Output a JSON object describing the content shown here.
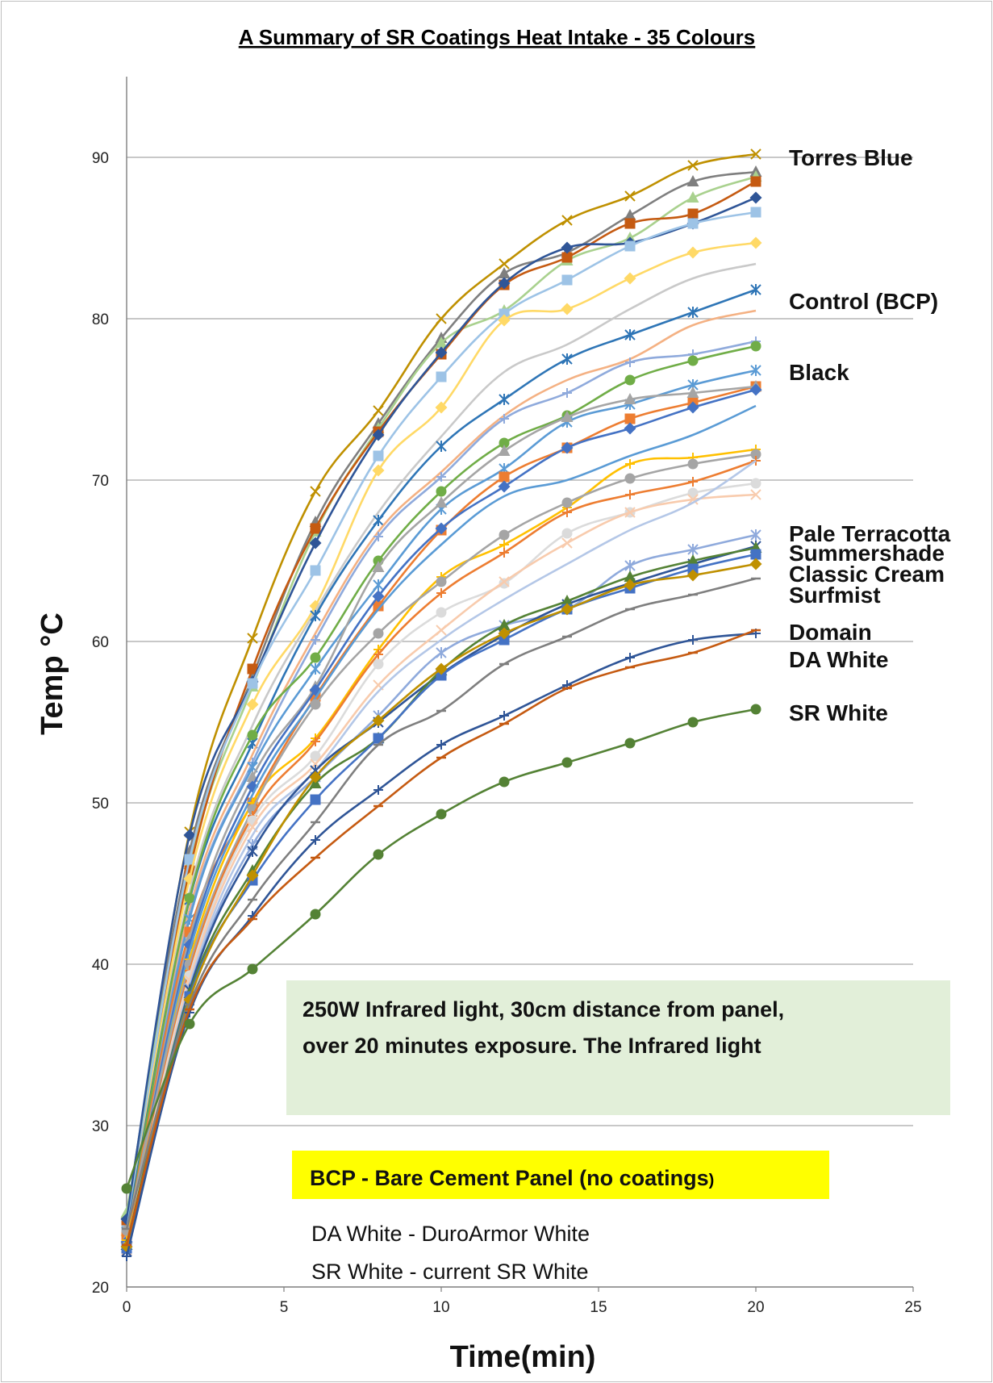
{
  "chart_data": {
    "type": "line",
    "title": "A Summary of SR Coatings Heat Intake - 35 Colours",
    "xlabel": "Time(min)",
    "ylabel": "Temp °C",
    "xlim": [
      0,
      25
    ],
    "ylim": [
      20,
      95
    ],
    "x_ticks": [
      0,
      5,
      10,
      15,
      20,
      25
    ],
    "y_ticks": [
      20,
      30,
      40,
      50,
      60,
      70,
      80,
      90
    ],
    "grid": "horizontal",
    "x": [
      0,
      2,
      4,
      6,
      8,
      10,
      12,
      14,
      16,
      18,
      20
    ],
    "series_labels": [
      {
        "text": "Torres Blue",
        "y": 90.0
      },
      {
        "text": "Control (BCP)",
        "y": 81.1
      },
      {
        "text": "Black",
        "y": 76.7
      },
      {
        "text": "Pale Terracotta",
        "y": 66.7
      },
      {
        "text": "Summershade",
        "y": 65.5
      },
      {
        "text": "Classic Cream",
        "y": 64.2
      },
      {
        "text": "Surfmist",
        "y": 62.9
      },
      {
        "text": "Domain",
        "y": 60.6
      },
      {
        "text": "DA White",
        "y": 58.9
      },
      {
        "text": "SR White",
        "y": 55.6
      }
    ],
    "series": [
      {
        "color": "#bf9000",
        "marker": "x",
        "values": [
          24.0,
          48.2,
          60.2,
          69.3,
          74.3,
          80.0,
          83.4,
          86.1,
          87.6,
          89.5,
          90.2
        ]
      },
      {
        "color": "#7f7f7f",
        "marker": "triangle",
        "values": [
          24.5,
          47.0,
          57.8,
          67.4,
          73.5,
          78.8,
          82.8,
          84.1,
          86.4,
          88.5,
          89.1
        ]
      },
      {
        "color": "#a9d18e",
        "marker": "triangle",
        "values": [
          24.6,
          46.2,
          57.2,
          66.8,
          73.2,
          78.5,
          80.5,
          83.6,
          85.0,
          87.5,
          88.8
        ]
      },
      {
        "color": "#c55a11",
        "marker": "square",
        "values": [
          23.8,
          45.8,
          58.3,
          67.0,
          73.0,
          77.8,
          82.1,
          83.8,
          85.9,
          86.5,
          88.5
        ]
      },
      {
        "color": "#2f5597",
        "marker": "diamond",
        "values": [
          24.2,
          48.0,
          57.5,
          66.1,
          72.8,
          77.9,
          82.2,
          84.4,
          84.7,
          85.9,
          87.5
        ]
      },
      {
        "color": "#9dc3e6",
        "marker": "square",
        "values": [
          23.5,
          46.5,
          57.4,
          64.4,
          71.5,
          76.4,
          80.3,
          82.4,
          84.5,
          85.9,
          86.6
        ]
      },
      {
        "color": "#ffd966",
        "marker": "diamond",
        "values": [
          23.2,
          45.3,
          56.1,
          62.2,
          70.6,
          74.5,
          79.9,
          80.6,
          82.5,
          84.1,
          84.7
        ]
      },
      {
        "color": "#c9c9c9",
        "marker": "none",
        "values": [
          23.0,
          44.5,
          54.8,
          61.9,
          68.0,
          72.7,
          76.7,
          78.4,
          80.6,
          82.5,
          83.4
        ]
      },
      {
        "color": "#2e75b6",
        "marker": "star",
        "values": [
          23.4,
          44.0,
          53.7,
          61.6,
          67.5,
          72.1,
          75.0,
          77.5,
          79.0,
          80.4,
          81.8
        ]
      },
      {
        "color": "#f4b183",
        "marker": "none",
        "values": [
          23.0,
          43.4,
          53.0,
          60.5,
          66.8,
          70.5,
          74.0,
          76.2,
          77.5,
          79.6,
          80.5
        ]
      },
      {
        "color": "#8faadc",
        "marker": "plus",
        "values": [
          22.8,
          43.0,
          52.5,
          60.1,
          66.5,
          70.2,
          73.8,
          75.4,
          77.3,
          77.8,
          78.6
        ]
      },
      {
        "color": "#70ad47",
        "marker": "circle",
        "values": [
          23.0,
          44.1,
          54.2,
          59.0,
          65.0,
          69.3,
          72.3,
          74.0,
          76.2,
          77.4,
          78.3
        ]
      },
      {
        "color": "#5b9bd5",
        "marker": "star",
        "values": [
          22.5,
          42.8,
          52.2,
          58.3,
          63.5,
          68.2,
          70.7,
          73.6,
          74.7,
          75.9,
          76.8
        ]
      },
      {
        "color": "#ed7d31",
        "marker": "square",
        "values": [
          23.2,
          42.0,
          50.0,
          56.6,
          62.2,
          66.9,
          70.2,
          72.0,
          73.8,
          74.8,
          75.8
        ]
      },
      {
        "color": "#a5a5a5",
        "marker": "triangle",
        "values": [
          23.0,
          41.6,
          51.6,
          57.2,
          64.6,
          68.6,
          71.8,
          73.9,
          75.0,
          75.4,
          75.8
        ]
      },
      {
        "color": "#4472c4",
        "marker": "diamond",
        "values": [
          22.8,
          41.2,
          51.0,
          57.0,
          62.8,
          67.0,
          69.6,
          72.0,
          73.2,
          74.5,
          75.6
        ]
      },
      {
        "color": "#5a9bd5",
        "marker": "none",
        "values": [
          22.6,
          40.8,
          50.5,
          56.5,
          62.0,
          66.0,
          69.0,
          70.0,
          71.5,
          72.8,
          74.6
        ]
      },
      {
        "color": "#ffc000",
        "marker": "plus",
        "values": [
          22.9,
          40.3,
          50.0,
          54.0,
          59.5,
          64.0,
          66.0,
          68.3,
          71.0,
          71.4,
          71.9
        ]
      },
      {
        "color": "#a5a5a5",
        "marker": "circle",
        "values": [
          23.5,
          40.0,
          49.6,
          56.1,
          60.5,
          63.7,
          66.6,
          68.6,
          70.1,
          71.0,
          71.6
        ]
      },
      {
        "color": "#ed7d31",
        "marker": "plus",
        "values": [
          22.7,
          39.6,
          49.2,
          53.8,
          59.2,
          63.0,
          65.5,
          68.0,
          69.1,
          69.9,
          71.2
        ]
      },
      {
        "color": "#dbdbdb",
        "marker": "circle",
        "values": [
          22.5,
          39.3,
          48.9,
          52.9,
          58.6,
          61.8,
          63.6,
          66.7,
          68.0,
          69.2,
          69.8
        ]
      },
      {
        "color": "#f8cbad",
        "marker": "x",
        "values": [
          22.3,
          39.0,
          48.5,
          52.4,
          57.3,
          60.7,
          63.7,
          66.1,
          68.0,
          68.8,
          69.1
        ]
      },
      {
        "color": "#b4c7e7",
        "marker": "none",
        "values": [
          22.2,
          38.7,
          48.0,
          52.0,
          56.9,
          60.1,
          62.6,
          64.8,
          66.9,
          68.6,
          71.2
        ]
      },
      {
        "color": "#8faadc",
        "marker": "star",
        "values": [
          22.4,
          38.5,
          47.4,
          51.6,
          55.4,
          59.3,
          61.0,
          62.0,
          64.7,
          65.7,
          66.6
        ]
      },
      {
        "color": "#2f5597",
        "marker": "star",
        "values": [
          22.2,
          38.4,
          47.0,
          52.0,
          55.0,
          58.0,
          60.4,
          62.3,
          63.6,
          64.8,
          65.9
        ]
      },
      {
        "color": "#548235",
        "marker": "triangle",
        "values": [
          22.6,
          38.2,
          45.8,
          51.2,
          54.0,
          58.2,
          61.0,
          62.5,
          64.0,
          65.0,
          65.8
        ]
      },
      {
        "color": "#4472c4",
        "marker": "square",
        "values": [
          22.4,
          38.0,
          45.2,
          50.2,
          54.0,
          57.9,
          60.1,
          62.0,
          63.3,
          64.5,
          65.4
        ]
      },
      {
        "color": "#bf9000",
        "marker": "diamond",
        "values": [
          22.5,
          37.8,
          45.5,
          51.6,
          55.1,
          58.3,
          60.5,
          62.0,
          63.5,
          64.1,
          64.8
        ]
      },
      {
        "color": "#7f7f7f",
        "marker": "minus",
        "values": [
          23.6,
          37.5,
          44.0,
          48.8,
          53.6,
          55.7,
          58.6,
          60.3,
          62.0,
          62.9,
          63.9
        ]
      },
      {
        "color": "#2f5597",
        "marker": "plus",
        "values": [
          21.9,
          37.0,
          43.0,
          47.7,
          50.8,
          53.6,
          55.4,
          57.3,
          59.0,
          60.1,
          60.5
        ]
      },
      {
        "color": "#c55a11",
        "marker": "minus",
        "values": [
          22.6,
          37.2,
          42.8,
          46.6,
          49.8,
          52.8,
          54.9,
          57.1,
          58.4,
          59.3,
          60.7
        ]
      },
      {
        "color": "#548235",
        "marker": "circle",
        "values": [
          26.1,
          36.3,
          39.7,
          43.1,
          46.8,
          49.3,
          51.3,
          52.5,
          53.7,
          55.0,
          55.8
        ]
      }
    ]
  },
  "annotations": {
    "info_box": {
      "line1": "250W Infrared light, 30cm distance from panel,",
      "line2": "over 20 minutes exposure. The Infrared light",
      "fill": "#e2efd9"
    },
    "bcp_box": {
      "text_main": "BCP - Bare Cement Panel (no coatings",
      "text_tail": ")",
      "fill": "#ffff00"
    },
    "legend_lines": [
      "DA White - DuroArmor White",
      "SR White - current SR White"
    ]
  }
}
